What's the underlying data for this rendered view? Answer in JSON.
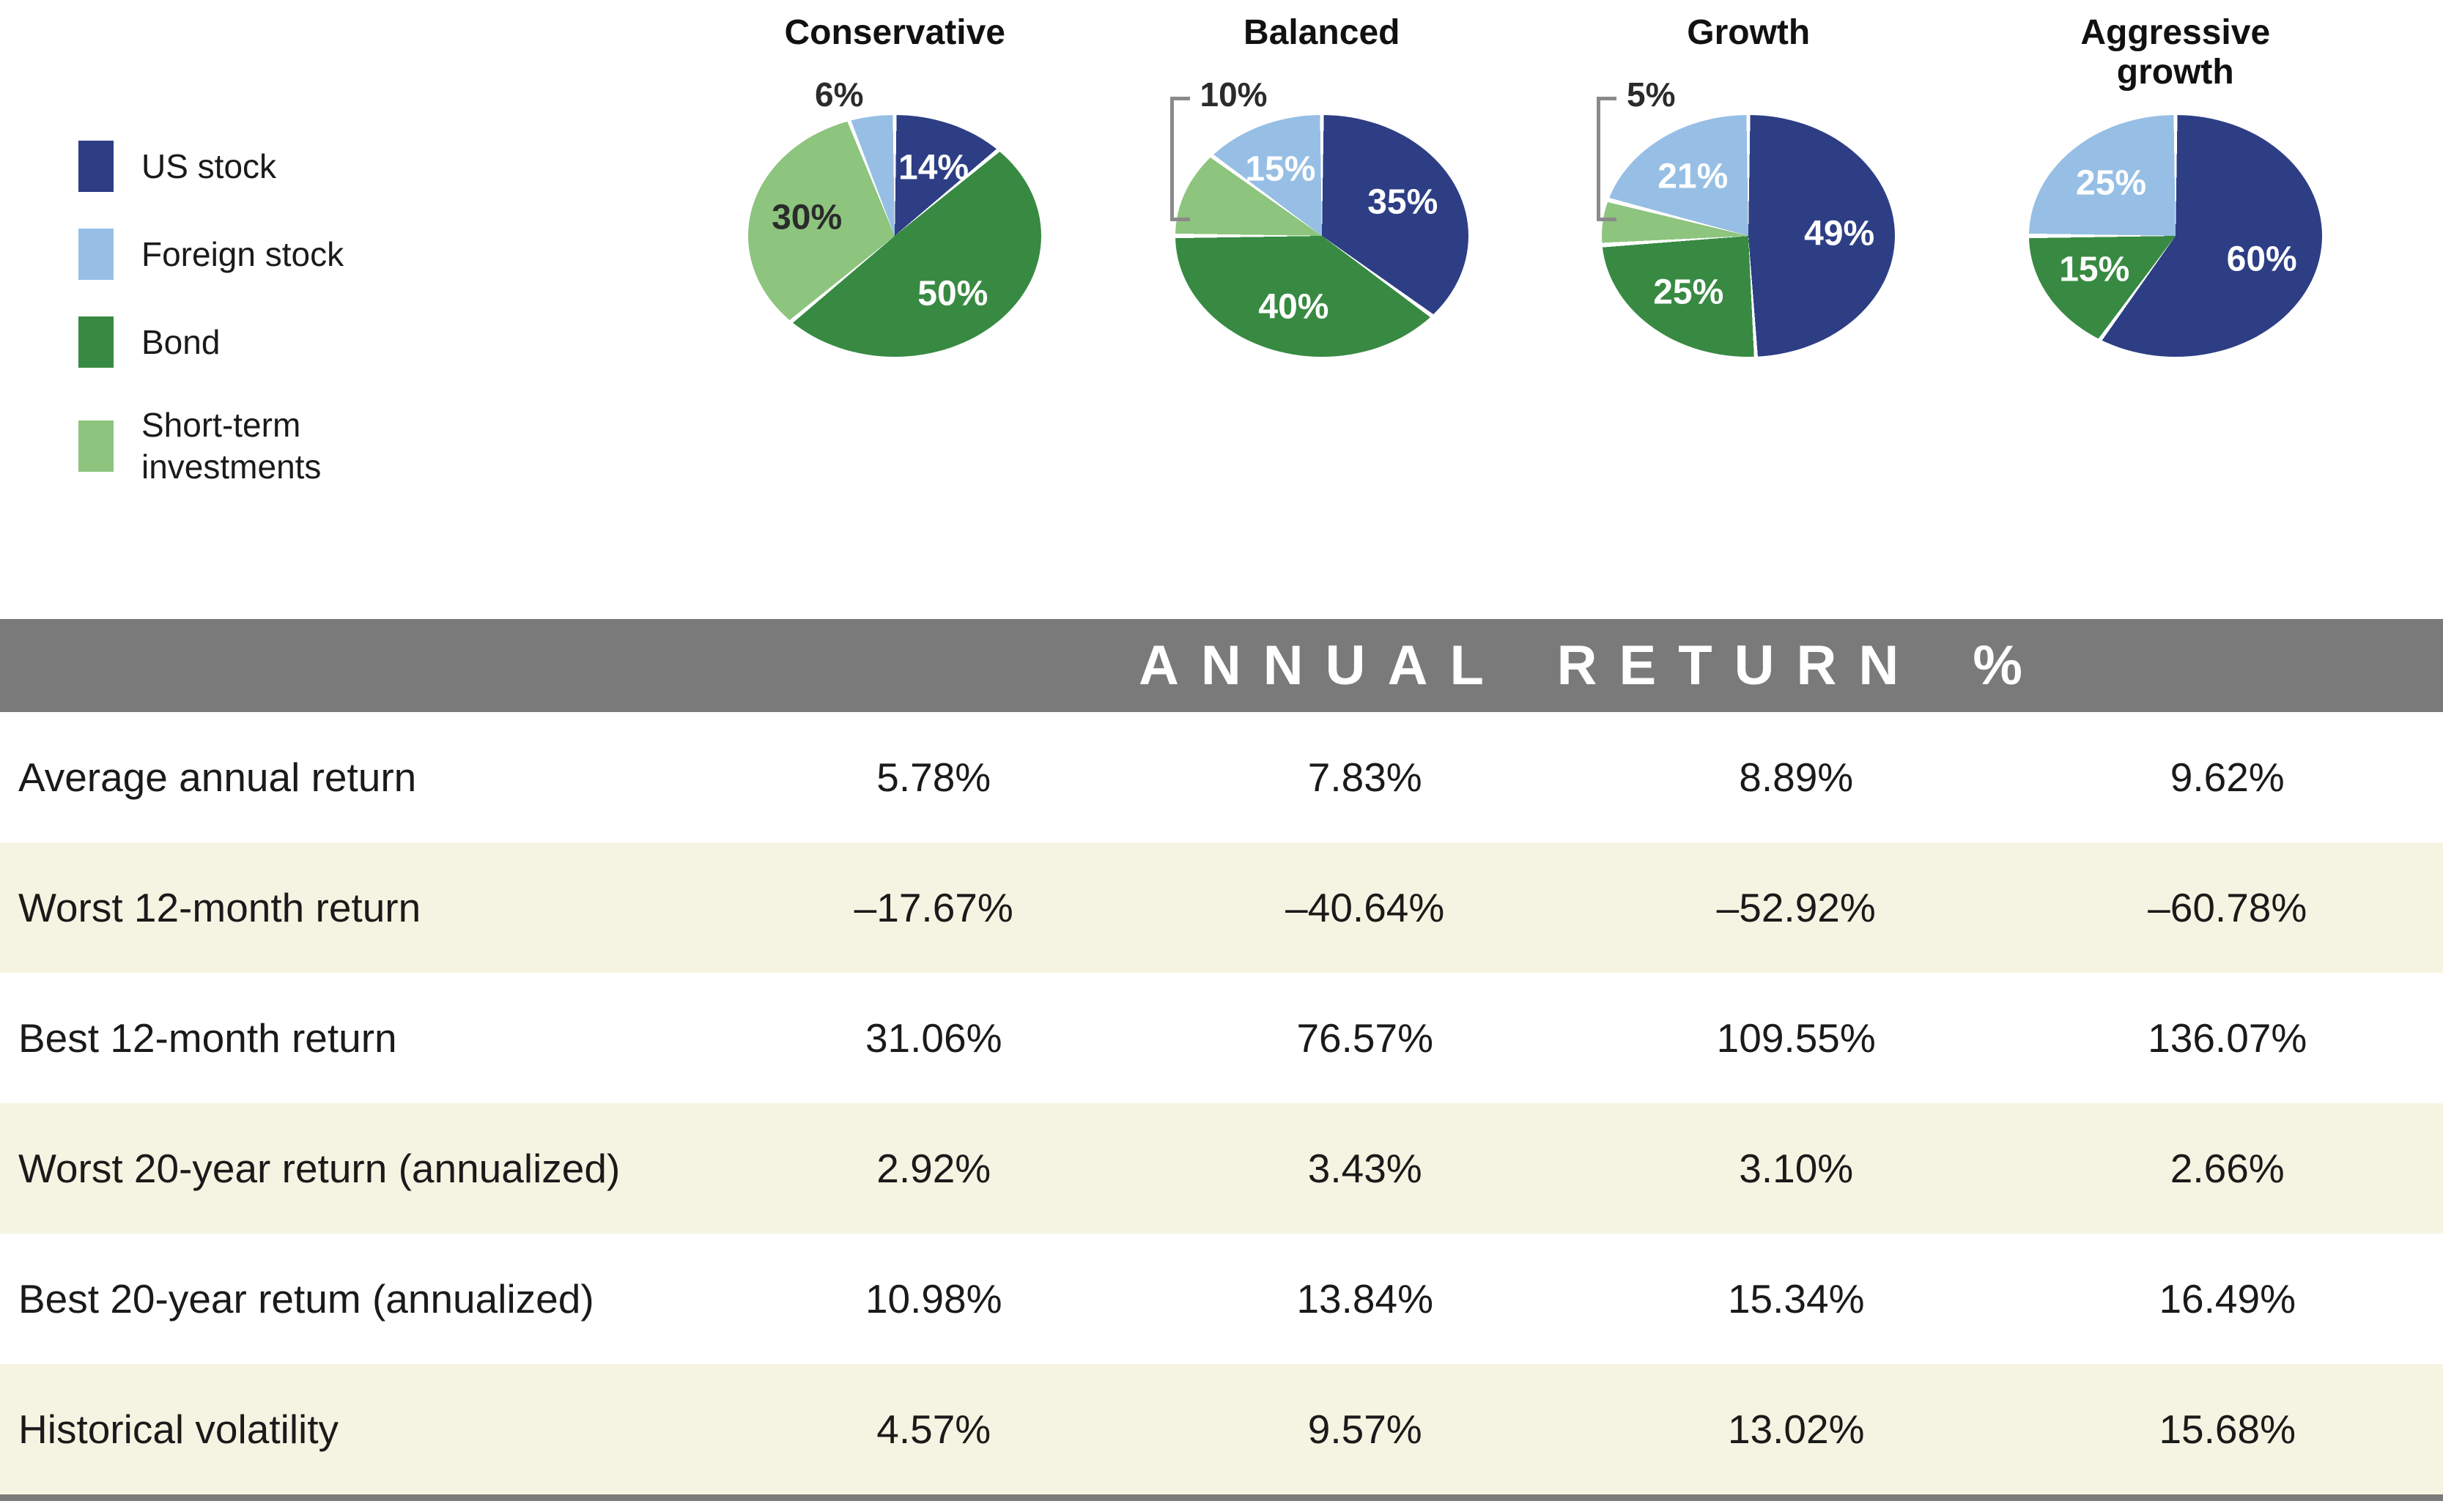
{
  "colors": {
    "us_stock": "#2d3e85",
    "foreign_stock": "#97bfe5",
    "bond": "#388a42",
    "short_term": "#8dc47e",
    "band_gray": "#7a7a7a",
    "stripe_beige": "#f5f4e2",
    "callout_text": "#2b2b2b"
  },
  "legend": {
    "items": [
      {
        "label": "US stock",
        "color": "#2d3e85"
      },
      {
        "label": "Foreign stock",
        "color": "#97bfe5"
      },
      {
        "label": "Bond",
        "color": "#388a42"
      },
      {
        "label": "Short-term investments",
        "color": "#8dc47e"
      }
    ]
  },
  "pies": [
    {
      "title": "Conservative",
      "slices": [
        {
          "label": "US stock",
          "value": 14,
          "color": "#2d3e85",
          "text": "14%",
          "text_color": "#ffffff"
        },
        {
          "label": "Bond",
          "value": 50,
          "color": "#388a42",
          "text": "50%",
          "text_color": "#ffffff"
        },
        {
          "label": "Short-term investments",
          "value": 30,
          "color": "#8dc47e",
          "text": "30%",
          "text_color": "#2b2b2b"
        },
        {
          "label": "Foreign stock",
          "value": 6,
          "color": "#97bfe5",
          "text": "6%",
          "outside": true,
          "bracket": false
        }
      ]
    },
    {
      "title": "Balanced",
      "slices": [
        {
          "label": "US stock",
          "value": 35,
          "color": "#2d3e85",
          "text": "35%",
          "text_color": "#ffffff"
        },
        {
          "label": "Bond",
          "value": 40,
          "color": "#388a42",
          "text": "40%",
          "text_color": "#ffffff"
        },
        {
          "label": "Short-term investments",
          "value": 10,
          "color": "#8dc47e",
          "text": "10%",
          "outside": true,
          "bracket": true
        },
        {
          "label": "Foreign stock",
          "value": 15,
          "color": "#97bfe5",
          "text": "15%",
          "text_color": "#ffffff"
        }
      ]
    },
    {
      "title": "Growth",
      "slices": [
        {
          "label": "US stock",
          "value": 49,
          "color": "#2d3e85",
          "text": "49%",
          "text_color": "#ffffff"
        },
        {
          "label": "Bond",
          "value": 25,
          "color": "#388a42",
          "text": "25%",
          "text_color": "#ffffff"
        },
        {
          "label": "Short-term investments",
          "value": 5,
          "color": "#8dc47e",
          "text": "5%",
          "outside": true,
          "bracket": true
        },
        {
          "label": "Foreign stock",
          "value": 21,
          "color": "#97bfe5",
          "text": "21%",
          "text_color": "#ffffff"
        }
      ]
    },
    {
      "title": "Aggressive growth",
      "slices": [
        {
          "label": "US stock",
          "value": 60,
          "color": "#2d3e85",
          "text": "60%",
          "text_color": "#ffffff"
        },
        {
          "label": "Bond",
          "value": 15,
          "color": "#388a42",
          "text": "15%",
          "text_color": "#ffffff"
        },
        {
          "label": "Foreign stock",
          "value": 25,
          "color": "#97bfe5",
          "text": "25%",
          "text_color": "#ffffff"
        }
      ]
    }
  ],
  "band": {
    "title": "ANNUAL RETURN %"
  },
  "table": {
    "rows": [
      {
        "label": "Average annual return",
        "values": [
          "5.78%",
          "7.83%",
          "8.89%",
          "9.62%"
        ]
      },
      {
        "label": "Worst 12-month return",
        "values": [
          "–17.67%",
          "–40.64%",
          "–52.92%",
          "–60.78%"
        ]
      },
      {
        "label": "Best 12-month return",
        "values": [
          "31.06%",
          "76.57%",
          "109.55%",
          "136.07%"
        ]
      },
      {
        "label": "Worst 20-year return (annualized)",
        "values": [
          "2.92%",
          "3.43%",
          "3.10%",
          "2.66%"
        ]
      },
      {
        "label": "Best 20-year retum (annualized)",
        "values": [
          "10.98%",
          "13.84%",
          "15.34%",
          "16.49%"
        ]
      },
      {
        "label": "Historical volatility",
        "values": [
          "4.57%",
          "9.57%",
          "13.02%",
          "15.68%"
        ]
      }
    ]
  },
  "chart_data": [
    {
      "type": "pie",
      "title": "Conservative",
      "labels": [
        "US stock",
        "Bond",
        "Short-term investments",
        "Foreign stock"
      ],
      "values": [
        14,
        50,
        30,
        6
      ],
      "colors": [
        "#2d3e85",
        "#388a42",
        "#8dc47e",
        "#97bfe5"
      ],
      "legend_position": "left",
      "layout_hint": "clockwise from 12 o'clock, white slice borders, slightly flattened ellipse"
    },
    {
      "type": "pie",
      "title": "Balanced",
      "labels": [
        "US stock",
        "Bond",
        "Short-term investments",
        "Foreign stock"
      ],
      "values": [
        35,
        40,
        10,
        15
      ],
      "colors": [
        "#2d3e85",
        "#388a42",
        "#8dc47e",
        "#97bfe5"
      ],
      "annotations": [
        "10% labeled outside with gray bracket callout"
      ]
    },
    {
      "type": "pie",
      "title": "Growth",
      "labels": [
        "US stock",
        "Bond",
        "Short-term investments",
        "Foreign stock"
      ],
      "values": [
        49,
        25,
        5,
        21
      ],
      "colors": [
        "#2d3e85",
        "#388a42",
        "#8dc47e",
        "#97bfe5"
      ],
      "annotations": [
        "5% labeled outside with gray bracket callout"
      ]
    },
    {
      "type": "pie",
      "title": "Aggressive growth",
      "labels": [
        "US stock",
        "Bond",
        "Foreign stock"
      ],
      "values": [
        60,
        15,
        25
      ],
      "colors": [
        "#2d3e85",
        "#388a42",
        "#97bfe5"
      ]
    },
    {
      "type": "table",
      "title": "ANNUAL RETURN %",
      "columns": [
        "Conservative",
        "Balanced",
        "Growth",
        "Aggressive growth"
      ],
      "rows": [
        {
          "label": "Average annual return",
          "values": [
            5.78,
            7.83,
            8.89,
            9.62
          ]
        },
        {
          "label": "Worst 12-month return",
          "values": [
            -17.67,
            -40.64,
            -52.92,
            -60.78
          ]
        },
        {
          "label": "Best 12-month return",
          "values": [
            31.06,
            76.57,
            109.55,
            136.07
          ]
        },
        {
          "label": "Worst 20-year return (annualized)",
          "values": [
            2.92,
            3.43,
            3.1,
            2.66
          ]
        },
        {
          "label": "Best 20-year retum (annualized)",
          "values": [
            10.98,
            13.84,
            15.34,
            16.49
          ]
        },
        {
          "label": "Historical volatility",
          "values": [
            4.57,
            9.57,
            13.02,
            15.68
          ]
        }
      ]
    }
  ]
}
